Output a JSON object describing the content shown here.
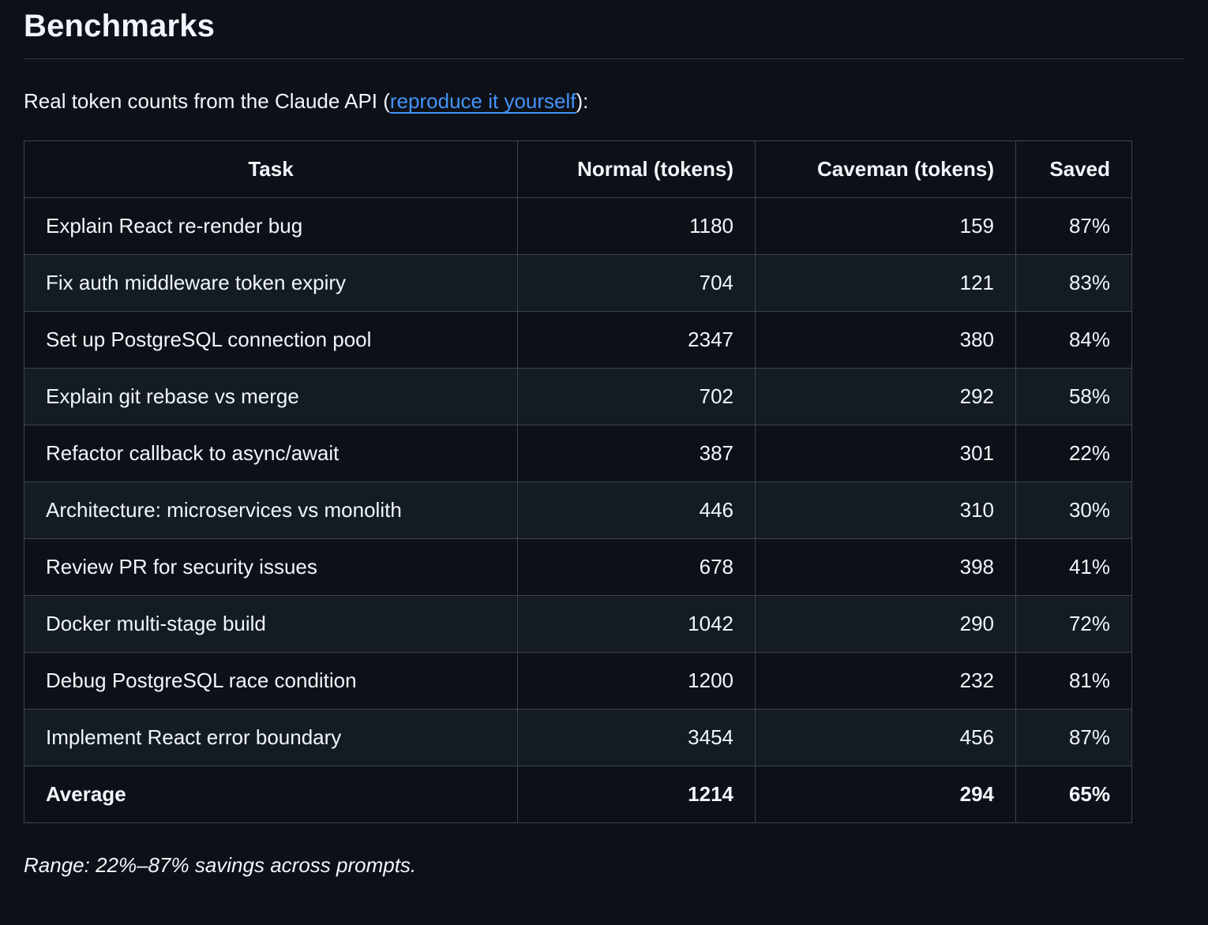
{
  "page": {
    "title": "Benchmarks",
    "intro": {
      "prefix": "Real token counts from the Claude API (",
      "link_label": "reproduce it yourself",
      "suffix": "):"
    },
    "footnote": "Range: 22%–87% savings across prompts."
  },
  "table": {
    "headers": {
      "task": "Task",
      "normal": "Normal (tokens)",
      "caveman": "Caveman (tokens)",
      "saved": "Saved"
    },
    "rows": [
      {
        "task": "Explain React re-render bug",
        "normal": "1180",
        "caveman": "159",
        "saved": "87%"
      },
      {
        "task": "Fix auth middleware token expiry",
        "normal": "704",
        "caveman": "121",
        "saved": "83%"
      },
      {
        "task": "Set up PostgreSQL connection pool",
        "normal": "2347",
        "caveman": "380",
        "saved": "84%"
      },
      {
        "task": "Explain git rebase vs merge",
        "normal": "702",
        "caveman": "292",
        "saved": "58%"
      },
      {
        "task": "Refactor callback to async/await",
        "normal": "387",
        "caveman": "301",
        "saved": "22%"
      },
      {
        "task": "Architecture: microservices vs monolith",
        "normal": "446",
        "caveman": "310",
        "saved": "30%"
      },
      {
        "task": "Review PR for security issues",
        "normal": "678",
        "caveman": "398",
        "saved": "41%"
      },
      {
        "task": "Docker multi-stage build",
        "normal": "1042",
        "caveman": "290",
        "saved": "72%"
      },
      {
        "task": "Debug PostgreSQL race condition",
        "normal": "1200",
        "caveman": "232",
        "saved": "81%"
      },
      {
        "task": "Implement React error boundary",
        "normal": "3454",
        "caveman": "456",
        "saved": "87%"
      }
    ],
    "average_row": {
      "task": "Average",
      "normal": "1214",
      "caveman": "294",
      "saved": "65%"
    }
  },
  "colors": {
    "background": "#0d1117",
    "text": "#f0f6fc",
    "link": "#4493f8",
    "border": "#3d444d",
    "row_alt": "#151b23"
  }
}
